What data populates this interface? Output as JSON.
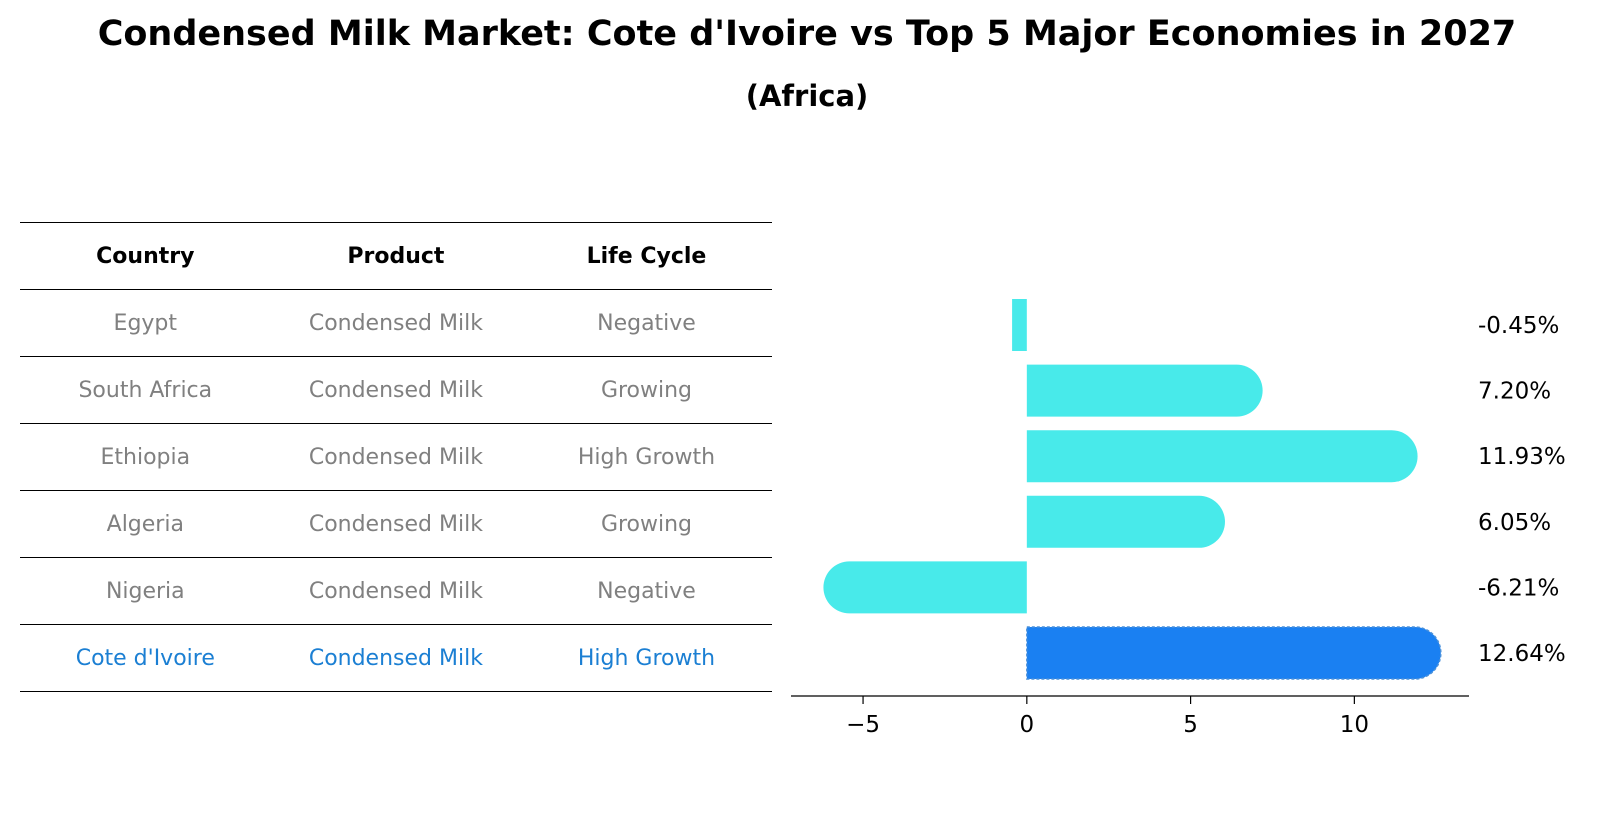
{
  "title": "Condensed Milk Market: Cote d'Ivoire vs Top 5 Major Economies in 2027",
  "subtitle": "(Africa)",
  "table": {
    "headers": [
      "Country",
      "Product",
      "Life Cycle"
    ],
    "rows": [
      [
        "Egypt",
        "Condensed Milk",
        "Negative"
      ],
      [
        "South Africa",
        "Condensed Milk",
        "Growing"
      ],
      [
        "Ethiopia",
        "Condensed Milk",
        "High Growth"
      ],
      [
        "Algeria",
        "Condensed Milk",
        "Growing"
      ],
      [
        "Nigeria",
        "Condensed Milk",
        "Negative"
      ],
      [
        "Cote d'Ivoire",
        "Condensed Milk",
        "High Growth"
      ]
    ]
  },
  "chart_data": {
    "type": "bar",
    "orientation": "horizontal",
    "categories": [
      "Egypt",
      "South Africa",
      "Ethiopia",
      "Algeria",
      "Nigeria",
      "Cote d'Ivoire"
    ],
    "values": [
      -0.45,
      7.2,
      11.93,
      6.05,
      -6.21,
      12.64
    ],
    "labels": [
      "-0.45%",
      "7.20%",
      "11.93%",
      "6.05%",
      "-6.21%",
      "12.64%"
    ],
    "highlight": "Cote d'Ivoire",
    "xlim": [
      -7.2,
      13.5
    ],
    "xticks": [
      -5,
      0,
      5,
      10
    ],
    "xtick_labels": [
      "−5",
      "0",
      "5",
      "10"
    ],
    "colors": {
      "bar": "#48eaea",
      "highlight": "#1a80f2",
      "highlight_text": "#1b7fd3",
      "muted_text": "#808080"
    }
  }
}
